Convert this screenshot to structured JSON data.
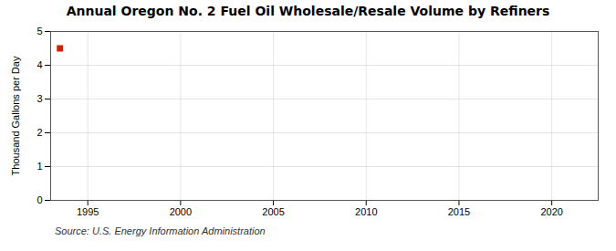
{
  "chart_data": {
    "type": "scatter",
    "title": "Annual Oregon No. 2 Fuel Oil Wholesale/Resale Volume by Refiners",
    "ylabel": "Thousand Gallons per Day",
    "annotations": [
      "Source: U.S. Energy Information Administration"
    ],
    "x": [
      1993.5
    ],
    "values": [
      4.5
    ],
    "color": "#cc2200",
    "marker": "square",
    "xlim": [
      1993,
      2022.5
    ],
    "ylim": [
      0,
      5
    ],
    "xticks": [
      1995,
      2000,
      2005,
      2010,
      2015,
      2020
    ],
    "yticks": [
      0,
      1,
      2,
      3,
      4,
      5
    ],
    "grid": true
  }
}
